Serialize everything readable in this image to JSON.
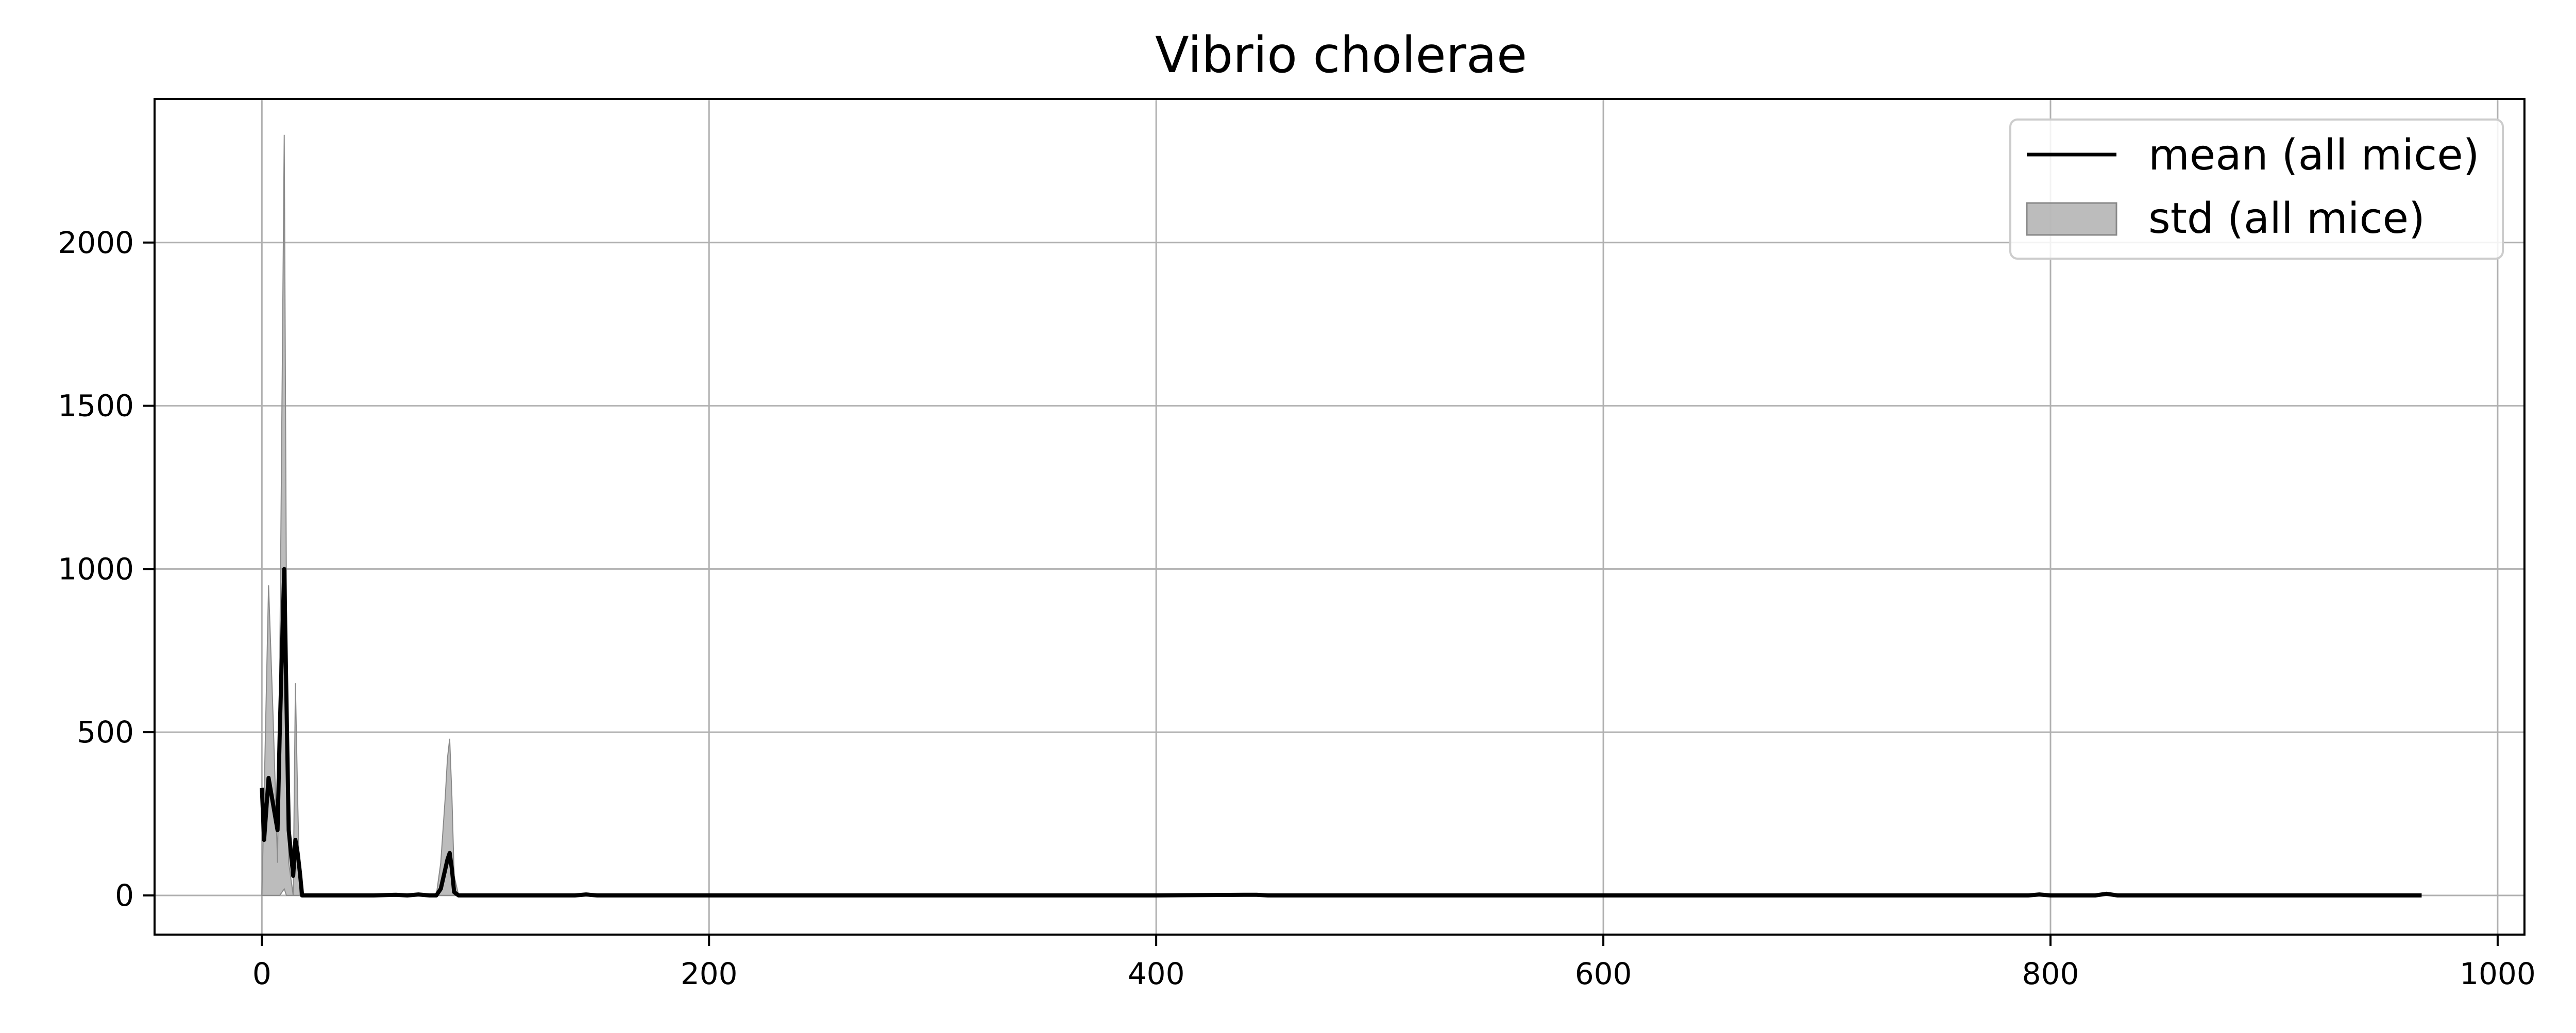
{
  "chart_data": {
    "type": "area",
    "title": "Vibrio cholerae",
    "xlabel": "",
    "ylabel": "",
    "xlim": [
      -48,
      1012
    ],
    "ylim": [
      -120,
      2440
    ],
    "xticks": [
      0,
      200,
      400,
      600,
      800,
      1000
    ],
    "yticks": [
      0,
      500,
      1000,
      1500,
      2000
    ],
    "grid": true,
    "legend_position": "top-right",
    "colors": {
      "mean_line": "#000000",
      "std_fill": "#a0a0a0",
      "grid": "#b0b0b0",
      "axes": "#000000"
    },
    "series": [
      {
        "name": "mean (all mice)",
        "kind": "line",
        "x": [
          0,
          1,
          3,
          5,
          7,
          8,
          10,
          11,
          12,
          14,
          15,
          16,
          17,
          18,
          20,
          30,
          40,
          50,
          60,
          65,
          70,
          75,
          78,
          80,
          82,
          83,
          84,
          85,
          86,
          88,
          90,
          100,
          120,
          140,
          145,
          150,
          160,
          200,
          300,
          400,
          440,
          445,
          450,
          500,
          600,
          700,
          790,
          795,
          800,
          820,
          825,
          830,
          900,
          966
        ],
        "y": [
          330,
          170,
          360,
          280,
          200,
          500,
          1000,
          600,
          200,
          60,
          170,
          130,
          70,
          0,
          0,
          0,
          0,
          0,
          2,
          0,
          3,
          0,
          0,
          20,
          80,
          110,
          130,
          80,
          10,
          0,
          0,
          0,
          0,
          0,
          3,
          0,
          0,
          0,
          0,
          0,
          2,
          2,
          0,
          0,
          0,
          0,
          0,
          3,
          0,
          0,
          5,
          0,
          0,
          0
        ]
      },
      {
        "name": "std (all mice)",
        "kind": "band",
        "x": [
          0,
          1,
          3,
          5,
          7,
          8,
          10,
          11,
          12,
          14,
          15,
          16,
          17,
          18,
          20,
          30,
          60,
          70,
          75,
          78,
          80,
          82,
          83,
          84,
          85,
          86,
          88,
          90,
          140,
          145,
          150,
          820,
          825,
          830,
          966
        ],
        "upper": [
          0,
          300,
          950,
          550,
          100,
          700,
          2330,
          900,
          100,
          0,
          650,
          300,
          0,
          0,
          0,
          0,
          0,
          0,
          0,
          0,
          100,
          300,
          420,
          480,
          300,
          60,
          0,
          0,
          0,
          5,
          0,
          0,
          8,
          0,
          0
        ],
        "lower": [
          0,
          0,
          0,
          0,
          0,
          0,
          20,
          0,
          0,
          0,
          0,
          0,
          0,
          0,
          0,
          0,
          0,
          0,
          0,
          0,
          0,
          0,
          0,
          0,
          0,
          0,
          0,
          0,
          0,
          0,
          0,
          0,
          0,
          0,
          0
        ]
      }
    ]
  }
}
